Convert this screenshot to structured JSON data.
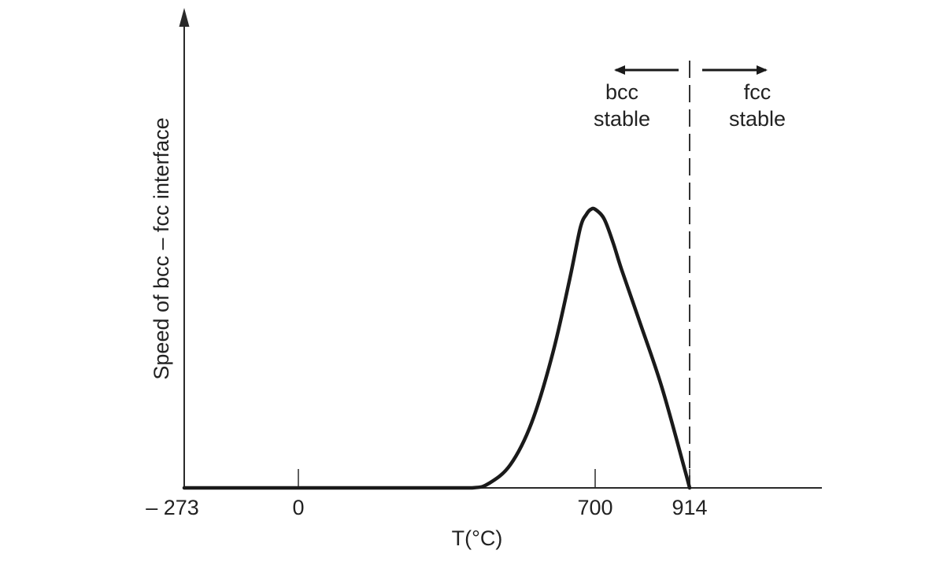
{
  "chart_data": {
    "type": "line",
    "title": "",
    "xlabel": "T(°C)",
    "ylabel": "Speed of bcc – fcc interface",
    "xlim": [
      -273,
      1100
    ],
    "ylim": [
      0,
      1
    ],
    "x_ticks": [
      {
        "value": -273,
        "label": "– 273"
      },
      {
        "value": 0,
        "label": "0"
      },
      {
        "value": 700,
        "label": "700"
      },
      {
        "value": 914,
        "label": "914"
      }
    ],
    "series": [
      {
        "name": "",
        "x": [
          -273,
          0,
          300,
          410,
          450,
          500,
          550,
          600,
          640,
          665,
          680,
          690,
          700,
          720,
          740,
          760,
          800,
          850,
          900,
          914
        ],
        "y": [
          0,
          0,
          0,
          0,
          0.01,
          0.05,
          0.14,
          0.29,
          0.45,
          0.56,
          0.59,
          0.6,
          0.6,
          0.58,
          0.53,
          0.47,
          0.36,
          0.22,
          0.05,
          0
        ]
      }
    ],
    "reference_line": {
      "x": 914,
      "style": "dashed"
    },
    "annotations": [
      {
        "text_lines": [
          "bcc",
          "stable"
        ],
        "arrow": "left"
      },
      {
        "text_lines": [
          "fcc",
          "stable"
        ],
        "arrow": "right"
      }
    ],
    "colors": {
      "curve": "#1a1a1a",
      "axes": "#2a2a2a"
    }
  }
}
